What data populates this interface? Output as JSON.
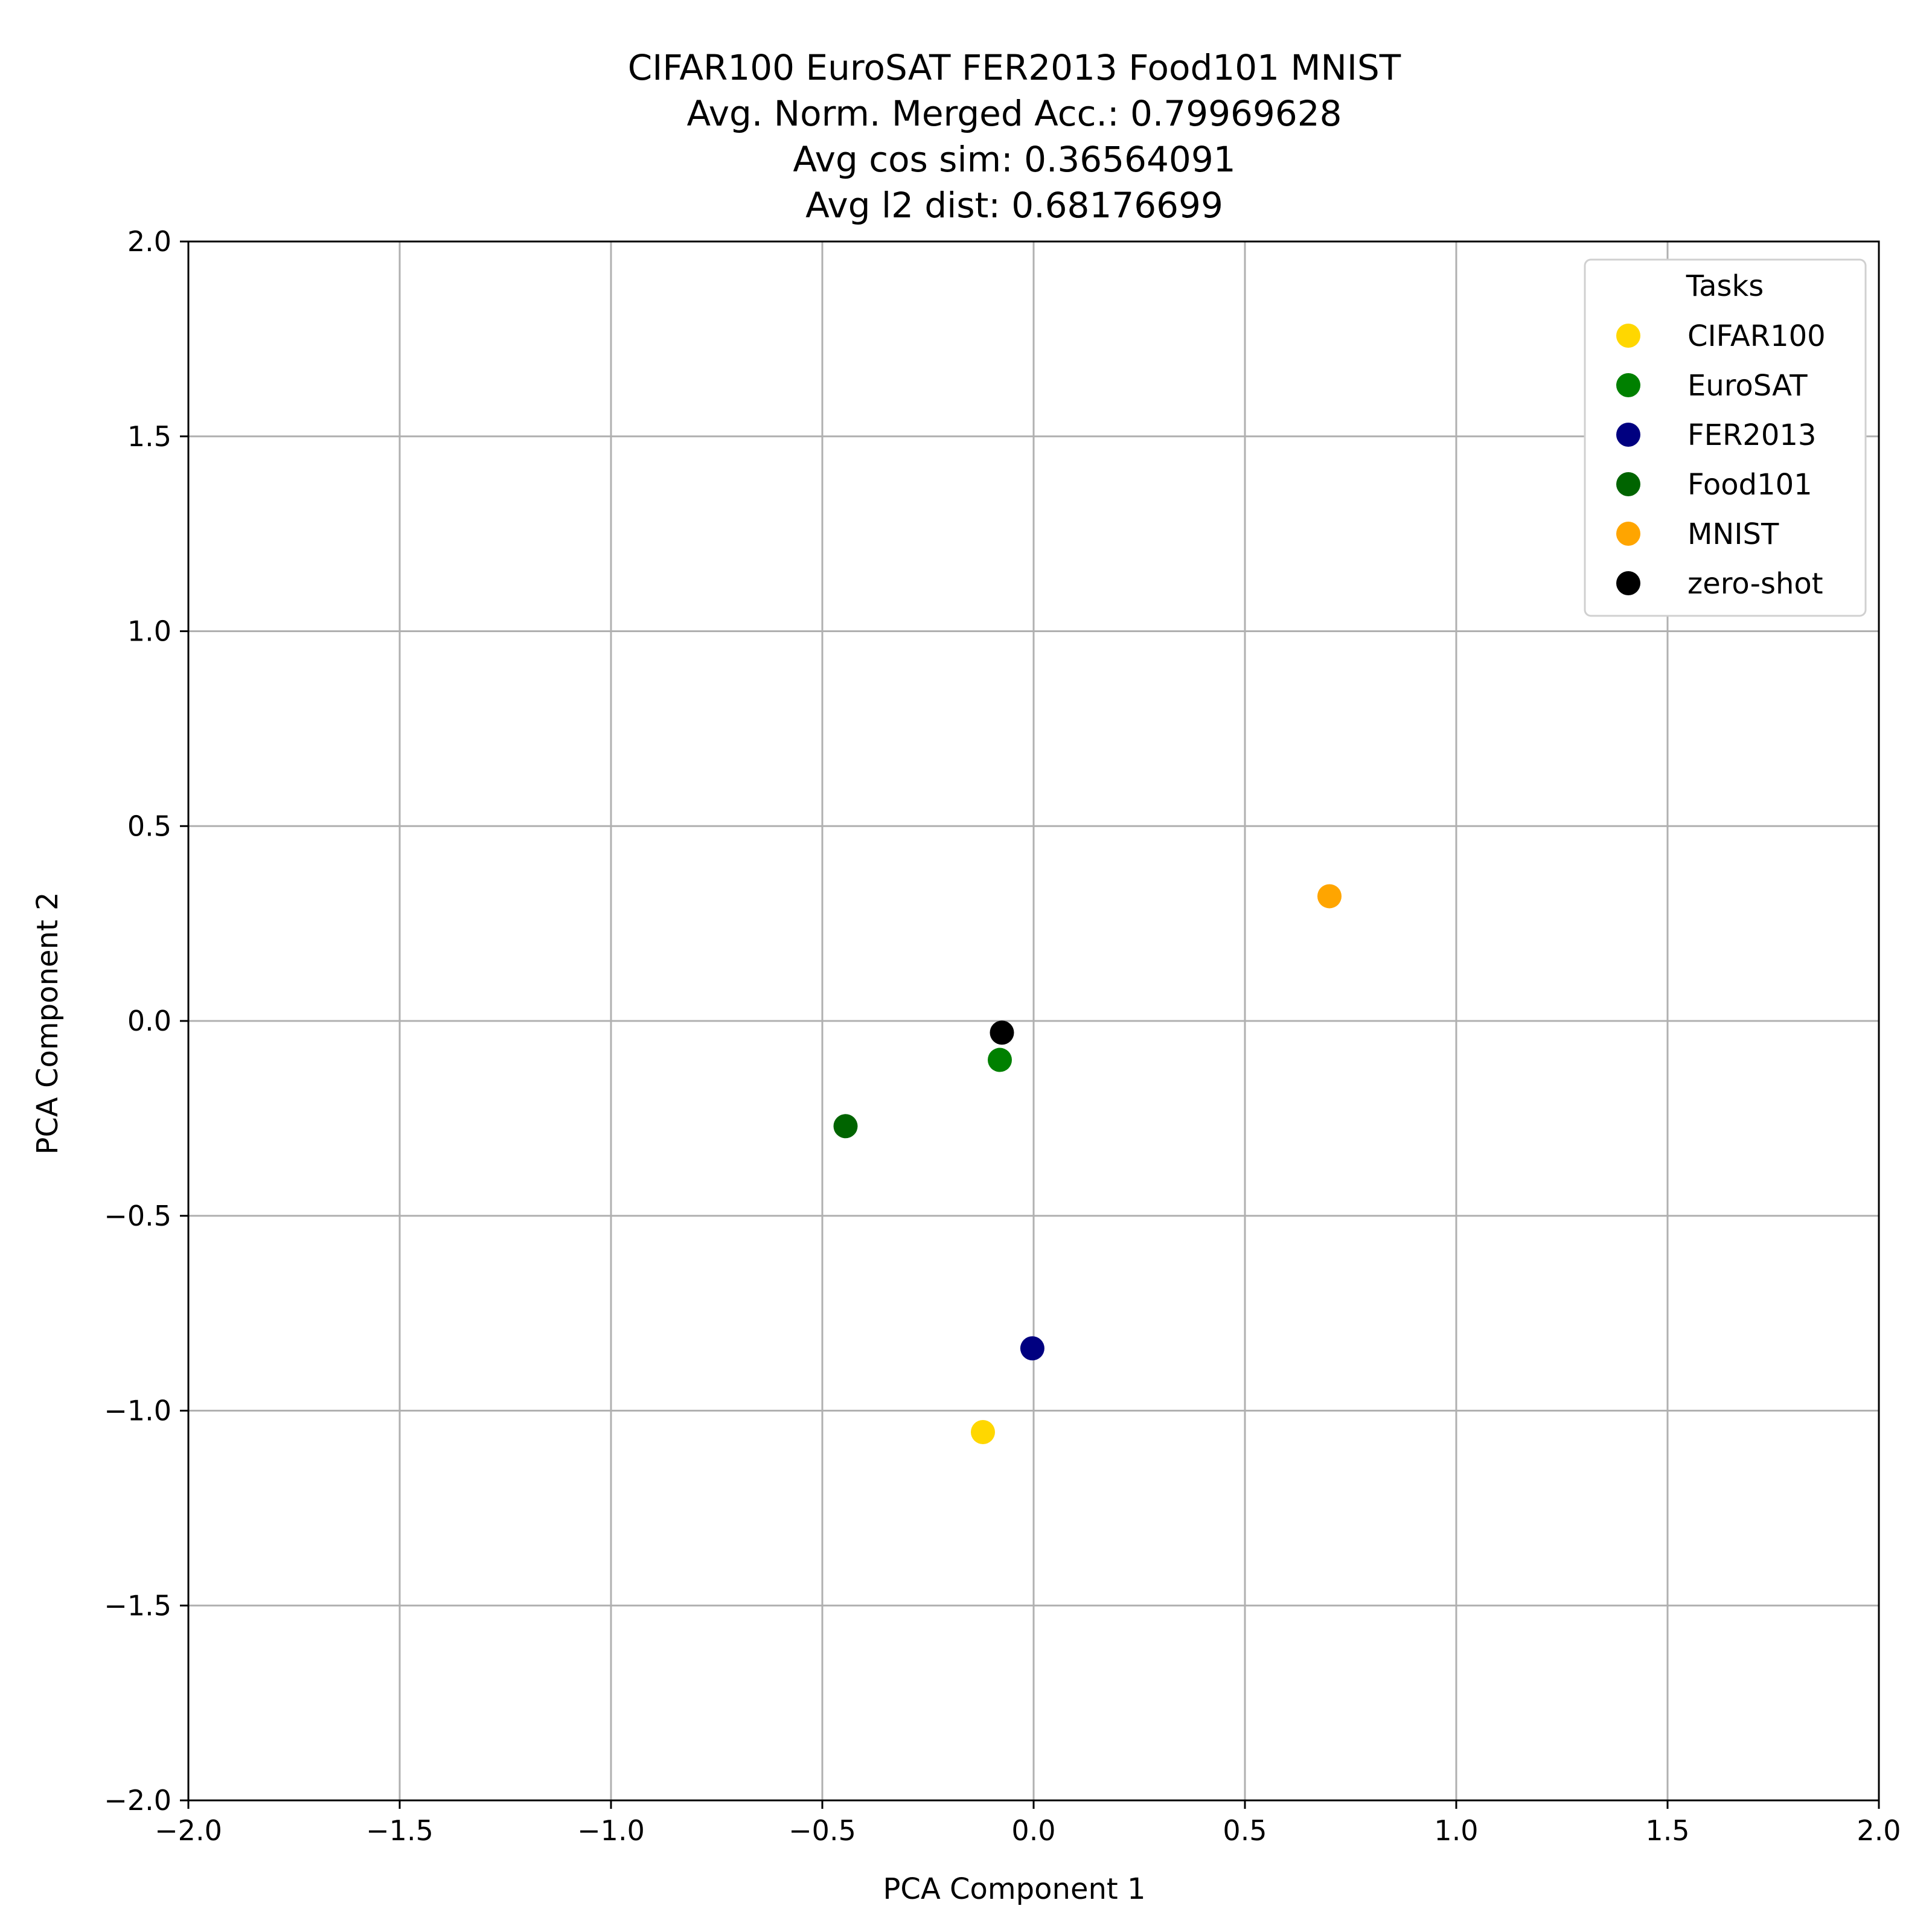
{
  "chart_data": {
    "type": "scatter",
    "title_lines": [
      "CIFAR100 EuroSAT FER2013 Food101 MNIST",
      "Avg. Norm. Merged Acc.: 0.79969628",
      "Avg cos sim: 0.36564091",
      "Avg l2 dist: 0.68176699"
    ],
    "xlabel": "PCA Component 1",
    "ylabel": "PCA Component 2",
    "xlim": [
      -2.0,
      2.0
    ],
    "ylim": [
      -2.0,
      2.0
    ],
    "xticks": [
      -2.0,
      -1.5,
      -1.0,
      -0.5,
      0.0,
      0.5,
      1.0,
      1.5,
      2.0
    ],
    "yticks": [
      -2.0,
      -1.5,
      -1.0,
      -0.5,
      0.0,
      0.5,
      1.0,
      1.5,
      2.0
    ],
    "grid": true,
    "legend": {
      "title": "Tasks",
      "position": "top-right"
    },
    "series": [
      {
        "name": "CIFAR100",
        "color": "#ffd700",
        "x": -0.12,
        "y": -1.055
      },
      {
        "name": "EuroSAT",
        "color": "#008000",
        "x": -0.08,
        "y": -0.1
      },
      {
        "name": "FER2013",
        "color": "#000080",
        "x": -0.003,
        "y": -0.84
      },
      {
        "name": "Food101",
        "color": "#006400",
        "x": -0.445,
        "y": -0.27
      },
      {
        "name": "MNIST",
        "color": "#ffa500",
        "x": 0.7,
        "y": 0.32
      },
      {
        "name": "zero-shot",
        "color": "#000000",
        "x": -0.075,
        "y": -0.03
      }
    ]
  }
}
